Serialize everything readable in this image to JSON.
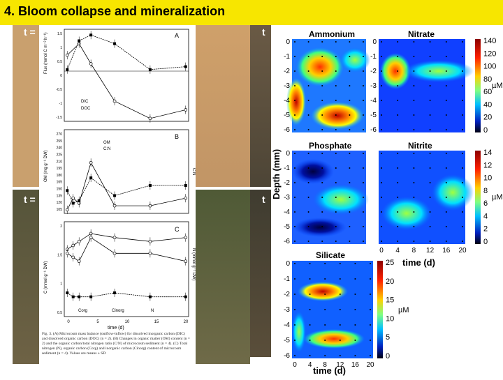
{
  "header": {
    "title": "4. Bloom collapse and mineralization"
  },
  "photos": {
    "label_top_left": "t =",
    "label_top_right": "t",
    "label_bottom_left": "t =",
    "label_bottom_right": "t"
  },
  "paper_figure": {
    "panel_a": {
      "letter": "A",
      "ylabel": "Flux (mmol C m⁻² h⁻¹)",
      "y_ticks": [
        "1.5",
        "1",
        "0.5",
        "0",
        "-0.5",
        "-1",
        "-1.5"
      ],
      "legend": [
        "DIC",
        "DOC"
      ]
    },
    "panel_b": {
      "letter": "B",
      "ylabel": "OM (mg g⁻¹ DW)",
      "ylabel_right": "C:N",
      "y_ticks": [
        "270",
        "255",
        "240",
        "225",
        "210",
        "195",
        "180",
        "165",
        "150",
        "135",
        "120",
        "105"
      ],
      "legend": [
        "OM",
        "C:N"
      ]
    },
    "panel_c": {
      "letter": "C",
      "ylabel": "C (mmol g⁻¹ DW)",
      "ylabel_right": "N (mmol g⁻¹ DW)",
      "y_ticks": [
        "2",
        "1.5",
        "1",
        "0.5"
      ],
      "y_ticks_right": [
        "0.15",
        "0.14",
        "0.13",
        "0.12",
        "0.11",
        "0.10",
        "0.09",
        "0.08",
        "0.07",
        "0.06",
        "0.05",
        "0.04",
        "0.03"
      ],
      "legend": [
        "Corg",
        "Cinorg",
        "N"
      ]
    },
    "x_ticks": [
      "0",
      "5",
      "10",
      "15",
      "20"
    ],
    "xlabel": "time (d)",
    "caption": "Fig. 3. (A) Microcosm mass balance (outflow-inflow) for dissolved inorganic carbon (DIC) and dissolved organic carbon (DOC) (n = 2). (B) Changes in organic matter (OM) content (n = 2) and the organic carbon/total nitrogen ratio (C/N) of microcosm sediment (n = 4). (C) Total nitrogen (N), organic carbon (Corg) and inorganic carbon (Cinorg) content of microcosm sediment (n = 4). Values are means ± SD"
  },
  "maps": {
    "ylabel": "Depth (mm)",
    "xlabel": "time (d)",
    "unit": "µM",
    "y_ticks": [
      "0",
      "-1",
      "-2",
      "-3",
      "-4",
      "-5",
      "-6"
    ],
    "x_ticks": [
      "0",
      "4",
      "8",
      "12",
      "16",
      "20"
    ],
    "panels": {
      "ammonium": "Ammonium",
      "nitrate": "Nitrate",
      "phosphate": "Phosphate",
      "nitrite": "Nitrite",
      "silicate": "Silicate"
    },
    "colorbar_top": [
      "140",
      "120",
      "100",
      "80",
      "60",
      "40",
      "20",
      "0"
    ],
    "colorbar_mid": [
      "14",
      "12",
      "10",
      "8",
      "6",
      "4",
      "2",
      "0"
    ],
    "colorbar_bottom": [
      "25",
      "20",
      "15",
      "10",
      "5",
      "0"
    ]
  },
  "colors": {
    "banner": "#f7e600",
    "sand": "#c9a06e",
    "sediment": "#5b5a3e"
  },
  "chart_data": [
    {
      "type": "line",
      "title": "",
      "ylabel": "Flux (mmol C m⁻² h⁻¹)",
      "xlabel": "",
      "x": [
        0,
        2,
        4,
        8,
        14,
        20
      ],
      "series": [
        {
          "name": "DIC",
          "values": [
            0.8,
            1.2,
            0.5,
            -0.8,
            -1.4,
            -1.1
          ]
        },
        {
          "name": "DOC",
          "values": [
            0.3,
            1.3,
            1.5,
            1.2,
            0.3,
            0.4
          ]
        }
      ],
      "ylim": [
        -1.5,
        1.7
      ]
    },
    {
      "type": "line",
      "ylabel": "OM (mg g⁻¹ DW)",
      "x": [
        0,
        1,
        2,
        4,
        8,
        14,
        20
      ],
      "series": [
        {
          "name": "OM",
          "values": [
            112,
            135,
            125,
            205,
            120,
            120,
            135
          ]
        },
        {
          "name": "C:N",
          "values": [
            150,
            125,
            130,
            175,
            140,
            160,
            160
          ]
        }
      ],
      "ylim": [
        105,
        270
      ]
    },
    {
      "type": "line",
      "ylabel": "C (mmol g⁻¹ DW)",
      "x": [
        0,
        1,
        2,
        4,
        8,
        14,
        20
      ],
      "series": [
        {
          "name": "Corg",
          "values": [
            1.7,
            1.8,
            1.9,
            2.1,
            2.0,
            1.9,
            2.0
          ]
        },
        {
          "name": "Cinorg",
          "values": [
            0.6,
            0.5,
            0.5,
            0.5,
            0.6,
            0.5,
            0.5
          ]
        },
        {
          "name": "N",
          "values": [
            1.6,
            1.5,
            1.4,
            2.0,
            1.6,
            1.6,
            1.4
          ]
        }
      ],
      "ylim": [
        0,
        2.4
      ]
    }
  ]
}
